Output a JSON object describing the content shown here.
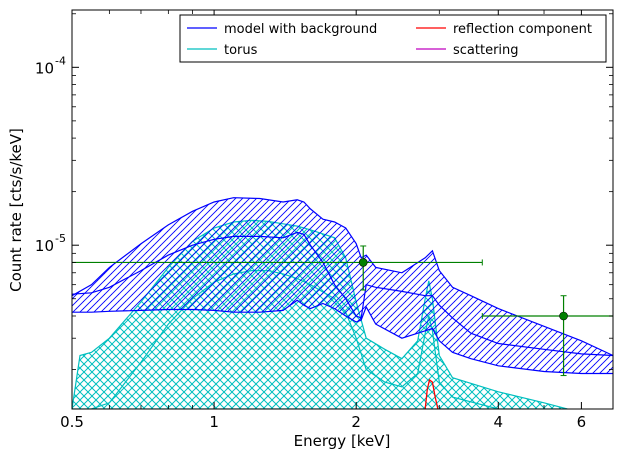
{
  "chart_data": {
    "type": "line",
    "title": "",
    "xlabel": "Energy [keV]",
    "ylabel": "Count rate [cts/s/keV]",
    "xscale": "log",
    "yscale": "log",
    "xlim": [
      0.5,
      7.0
    ],
    "ylim": [
      1.2e-06,
      0.00021
    ],
    "x_ticks": [
      {
        "value": 0.5,
        "label": "0.5"
      },
      {
        "value": 1,
        "label": "1"
      },
      {
        "value": 2,
        "label": "2"
      },
      {
        "value": 4,
        "label": "4"
      },
      {
        "value": 6,
        "label": "6"
      }
    ],
    "y_ticks": [
      {
        "value": 1e-05,
        "base": "10",
        "exp": "-5"
      },
      {
        "value": 0.0001,
        "base": "10",
        "exp": "-4"
      }
    ],
    "grid": false,
    "legend": {
      "placement": "top-right",
      "columns": 2,
      "entries": [
        {
          "label": "model with background",
          "color": "#0000ff"
        },
        {
          "label": "reflection component",
          "color": "#ff0000"
        },
        {
          "label": "torus",
          "color": "#00bfbf"
        },
        {
          "label": "scattering",
          "color": "#bf00bf"
        }
      ]
    },
    "model_band": {
      "color": "#0000ff",
      "hatch": "diagonal",
      "x": [
        0.5,
        0.55,
        0.6,
        0.7,
        0.8,
        0.9,
        1.0,
        1.1,
        1.25,
        1.4,
        1.5,
        1.55,
        1.6,
        1.7,
        1.8,
        1.9,
        2.0,
        2.05,
        2.1,
        2.2,
        2.5,
        2.8,
        2.9,
        3.0,
        3.2,
        3.5,
        4.0,
        5.0,
        6.0,
        7.0
      ],
      "upper": [
        5.2e-06,
        6e-06,
        7.5e-06,
        1.02e-05,
        1.3e-05,
        1.55e-05,
        1.75e-05,
        1.85e-05,
        1.83e-05,
        1.75e-05,
        1.8e-05,
        1.75e-05,
        1.6e-05,
        1.4e-05,
        1.35e-05,
        1.25e-05,
        1.02e-05,
        8.5e-06,
        8.8e-06,
        7.5e-06,
        7e-06,
        8.5e-06,
        9.3e-06,
        7.2e-06,
        5.8e-06,
        5.2e-06,
        4.4e-06,
        3.5e-06,
        2.9e-06,
        2.4e-06
      ],
      "lower": [
        4.2e-06,
        4.2e-06,
        4.25e-06,
        4.3e-06,
        4.35e-06,
        4.35e-06,
        4.3e-06,
        4.2e-06,
        4.2e-06,
        4.3e-06,
        4.9e-06,
        4.6e-06,
        4.4e-06,
        4.7e-06,
        4.4e-06,
        4e-06,
        3.7e-06,
        3.8e-06,
        4.5e-06,
        3.6e-06,
        3e-06,
        3.3e-06,
        3.4e-06,
        2.9e-06,
        2.5e-06,
        2.3e-06,
        2.1e-06,
        1.95e-06,
        1.9e-06,
        1.9e-06
      ],
      "mid": [
        5.3e-06,
        5.4e-06,
        5.8e-06,
        7.2e-06,
        8.8e-06,
        1e-05,
        1.08e-05,
        1.12e-05,
        1.12e-05,
        1.1e-05,
        1.18e-05,
        1.15e-05,
        1e-05,
        8e-06,
        6e-06,
        5e-06,
        4e-06,
        3.9e-06,
        6e-06,
        5.8e-06,
        5.5e-06,
        5.2e-06,
        5.2e-06,
        4.6e-06,
        3.9e-06,
        3.2e-06,
        2.8e-06,
        2.6e-06,
        2.45e-06,
        2.4e-06
      ]
    },
    "torus_band": {
      "color": "#00bfbf",
      "hatch": "cross",
      "x": [
        0.5,
        0.52,
        0.55,
        0.6,
        0.7,
        0.8,
        0.9,
        1.0,
        1.1,
        1.2,
        1.3,
        1.4,
        1.5,
        1.6,
        1.8,
        1.9,
        2.0,
        2.1,
        2.3,
        2.5,
        2.7,
        2.8,
        2.85,
        2.9,
        3.0,
        3.2,
        4.0,
        5.0,
        5.6
      ],
      "upper": [
        1.2e-06,
        2.4e-06,
        2.5e-06,
        3e-06,
        4.8e-06,
        7.5e-06,
        1.05e-05,
        1.25e-05,
        1.35e-05,
        1.38e-05,
        1.36e-05,
        1.32e-05,
        1.28e-05,
        1.22e-05,
        1.1e-05,
        8.5e-06,
        4.8e-06,
        3e-06,
        2.6e-06,
        2.3e-06,
        2.9e-06,
        5e-06,
        6.3e-06,
        5e-06,
        2.4e-06,
        1.8e-06,
        1.5e-06,
        1.3e-06,
        1.2e-06
      ],
      "lower": [
        1.2e-06,
        1.2e-06,
        1.2e-06,
        1.2e-06,
        1.2e-06,
        1.2e-06,
        1.2e-06,
        1.2e-06,
        1.2e-06,
        1.2e-06,
        1.2e-06,
        1.2e-06,
        1.2e-06,
        1.2e-06,
        1.2e-06,
        1.2e-06,
        1.2e-06,
        1.2e-06,
        1.2e-06,
        1.2e-06,
        1.2e-06,
        1.2e-06,
        1.2e-06,
        1.2e-06,
        1.2e-06,
        1.2e-06,
        1.2e-06,
        1.2e-06,
        1.2e-06
      ],
      "mid": [
        null,
        null,
        1.2e-06,
        1.3e-06,
        2.2e-06,
        3.6e-06,
        5e-06,
        6.2e-06,
        6.9e-06,
        7.2e-06,
        7.2e-06,
        6.9e-06,
        6.5e-06,
        6e-06,
        5e-06,
        4.2e-06,
        3e-06,
        2e-06,
        1.7e-06,
        1.6e-06,
        1.9e-06,
        3.2e-06,
        4e-06,
        3.3e-06,
        1.7e-06,
        1.4e-06,
        1.2e-06,
        null,
        null
      ]
    },
    "reflection_curve": {
      "color": "#ff0000",
      "x": [
        2.8,
        2.83,
        2.86,
        2.9,
        2.94,
        2.98
      ],
      "y": [
        1.2e-06,
        1.55e-06,
        1.75e-06,
        1.7e-06,
        1.4e-06,
        1.2e-06
      ]
    },
    "data_points": {
      "color": "#008000",
      "points": [
        {
          "x": 2.07,
          "y": 8e-06,
          "xerr": [
            0.5,
            3.7
          ],
          "yerr": [
            5.6e-06,
            9.9e-06
          ]
        },
        {
          "x": 5.5,
          "y": 4e-06,
          "xerr": [
            3.7,
            7.0
          ],
          "yerr": [
            1.85e-06,
            5.2e-06
          ]
        }
      ]
    }
  }
}
